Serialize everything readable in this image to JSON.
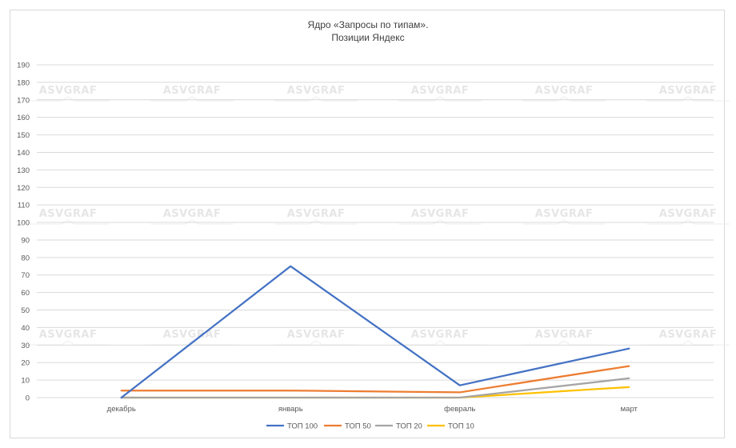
{
  "chart_data": {
    "type": "line",
    "title": [
      "Ядро «Запросы по типам».",
      "Позиции Яндекс"
    ],
    "categories": [
      "декабрь",
      "январь",
      "февраль",
      "март"
    ],
    "ylim": [
      0,
      190
    ],
    "yticks": [
      0,
      10,
      20,
      30,
      40,
      50,
      60,
      70,
      80,
      90,
      100,
      110,
      120,
      130,
      140,
      150,
      160,
      170,
      180,
      190
    ],
    "grid": true,
    "legend_position": "bottom",
    "series": [
      {
        "name": "ТОП 100",
        "color": "#4472c4",
        "values": [
          0,
          75,
          7,
          28
        ]
      },
      {
        "name": "ТОП 50",
        "color": "#ed7d31",
        "values": [
          4,
          4,
          3,
          18
        ]
      },
      {
        "name": "ТОП 20",
        "color": "#a5a5a5",
        "values": [
          0,
          0,
          0,
          11
        ]
      },
      {
        "name": "ТОП 10",
        "color": "#ffc000",
        "values": [
          0,
          0,
          0,
          6
        ]
      }
    ]
  },
  "watermark": {
    "text": "ASVGRAF"
  }
}
